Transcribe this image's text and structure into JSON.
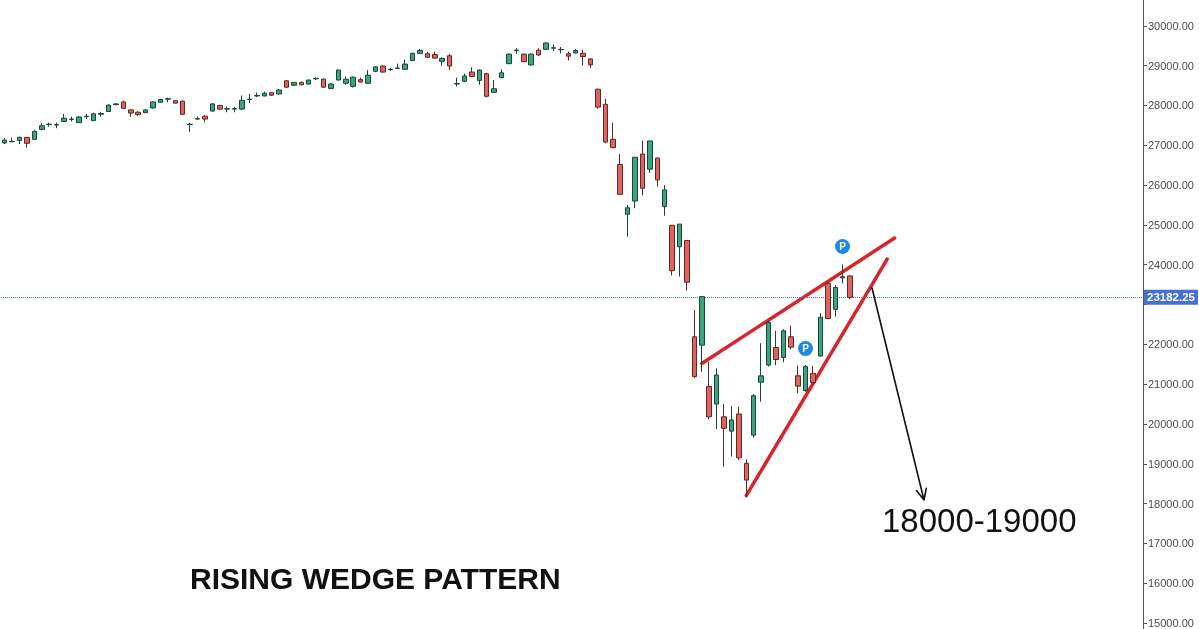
{
  "chart_data": {
    "type": "candlestick",
    "title": "RISING WEDGE PATTERN",
    "categories": [
      null,
      null,
      null,
      null,
      null,
      null,
      null,
      null,
      null,
      null,
      null,
      null,
      null,
      null,
      null,
      null,
      null,
      null,
      null,
      null,
      null,
      null,
      null,
      null,
      null,
      null,
      null,
      null,
      null,
      null,
      null,
      null,
      null,
      null,
      null,
      null,
      null,
      null,
      null,
      null,
      null,
      null,
      null,
      null,
      null,
      null,
      null,
      null,
      null,
      null,
      null,
      null,
      null,
      null,
      null,
      null,
      null,
      null,
      null,
      null,
      null,
      null,
      null,
      null,
      null,
      null,
      null,
      null,
      null,
      null,
      null,
      null,
      null,
      null,
      null,
      null,
      null,
      null,
      null,
      null,
      null,
      null,
      null,
      null,
      null,
      null,
      null,
      null,
      null,
      null,
      null,
      null,
      null,
      null,
      null,
      null,
      null,
      null,
      null,
      null,
      null,
      null,
      null,
      null,
      null,
      null,
      null,
      null,
      null,
      null,
      null,
      null,
      null,
      null,
      null,
      null,
      null,
      null,
      null,
      null,
      null,
      null,
      null,
      null,
      null,
      null,
      null,
      null,
      null,
      null,
      null,
      null,
      null,
      null,
      null,
      null,
      null,
      null,
      null,
      null,
      null,
      null,
      null,
      null,
      null,
      null,
      null,
      null,
      null,
      null,
      null,
      null,
      null,
      null
    ],
    "ohlc": [
      [
        27060,
        27180,
        27030,
        27130
      ],
      [
        27090,
        27190,
        27080,
        27100
      ],
      [
        27120,
        27220,
        27030,
        27200
      ],
      [
        27200,
        27210,
        26940,
        27050
      ],
      [
        27150,
        27390,
        27140,
        27350
      ],
      [
        27400,
        27560,
        27390,
        27490
      ],
      [
        27520,
        27570,
        27470,
        27530
      ],
      [
        27510,
        27570,
        27430,
        27520
      ],
      [
        27600,
        27790,
        27590,
        27680
      ],
      [
        27650,
        27720,
        27600,
        27660
      ],
      [
        27570,
        27740,
        27560,
        27710
      ],
      [
        27720,
        27790,
        27660,
        27730
      ],
      [
        27620,
        27820,
        27620,
        27790
      ],
      [
        27780,
        27840,
        27720,
        27800
      ],
      [
        27850,
        28030,
        27840,
        28010
      ],
      [
        28020,
        28060,
        28010,
        28040
      ],
      [
        28090,
        28120,
        27920,
        27930
      ],
      [
        27890,
        27910,
        27710,
        27810
      ],
      [
        27830,
        27860,
        27740,
        27770
      ],
      [
        27820,
        27910,
        27810,
        27890
      ],
      [
        27940,
        28100,
        27920,
        28090
      ],
      [
        28080,
        28170,
        28070,
        28150
      ],
      [
        28160,
        28200,
        28080,
        28170
      ],
      [
        28120,
        28140,
        28050,
        28060
      ],
      [
        28110,
        28120,
        27760,
        27780
      ],
      [
        27520,
        27570,
        27340,
        27530
      ],
      [
        27660,
        27720,
        27640,
        27670
      ],
      [
        27730,
        27760,
        27580,
        27660
      ],
      [
        27860,
        28060,
        27850,
        28040
      ],
      [
        28000,
        28020,
        27890,
        27910
      ],
      [
        27910,
        27970,
        27830,
        27920
      ],
      [
        27910,
        27960,
        27830,
        27920
      ],
      [
        27910,
        28250,
        27880,
        28130
      ],
      [
        28150,
        28290,
        28060,
        28160
      ],
      [
        28240,
        28330,
        28210,
        28250
      ],
      [
        28240,
        28350,
        28230,
        28310
      ],
      [
        28320,
        28340,
        28240,
        28260
      ],
      [
        28290,
        28410,
        28270,
        28390
      ],
      [
        28620,
        28640,
        28440,
        28460
      ],
      [
        28510,
        28590,
        28490,
        28580
      ],
      [
        28580,
        28600,
        28510,
        28520
      ],
      [
        28540,
        28650,
        28520,
        28640
      ],
      [
        28670,
        28710,
        28640,
        28680
      ],
      [
        28660,
        28680,
        28450,
        28460
      ],
      [
        28430,
        28560,
        28410,
        28540
      ],
      [
        28640,
        28900,
        28630,
        28890
      ],
      [
        28560,
        28730,
        28520,
        28660
      ],
      [
        28480,
        28730,
        28450,
        28710
      ],
      [
        28650,
        28700,
        28580,
        28590
      ],
      [
        28560,
        28890,
        28550,
        28760
      ],
      [
        28860,
        28990,
        28850,
        28970
      ],
      [
        28990,
        29020,
        28820,
        28840
      ],
      [
        28900,
        28940,
        28870,
        28910
      ],
      [
        28930,
        29050,
        28920,
        28940
      ],
      [
        28910,
        29150,
        28900,
        29040
      ],
      [
        29130,
        29330,
        29120,
        29310
      ],
      [
        29310,
        29420,
        29300,
        29380
      ],
      [
        29300,
        29350,
        29190,
        29210
      ],
      [
        29280,
        29350,
        29170,
        29190
      ],
      [
        29110,
        29210,
        29000,
        29180
      ],
      [
        29250,
        29290,
        28890,
        28990
      ],
      [
        28540,
        28700,
        28480,
        28550
      ],
      [
        28610,
        28800,
        28590,
        28740
      ],
      [
        28840,
        28960,
        28710,
        28730
      ],
      [
        28630,
        28900,
        28520,
        28890
      ],
      [
        28800,
        28820,
        28200,
        28230
      ],
      [
        28330,
        28640,
        28320,
        28420
      ],
      [
        28700,
        28910,
        28690,
        28820
      ],
      [
        29050,
        29310,
        29040,
        29290
      ],
      [
        29380,
        29440,
        29300,
        29390
      ],
      [
        29290,
        29310,
        29090,
        29100
      ],
      [
        29020,
        29310,
        29000,
        29290
      ],
      [
        29390,
        29440,
        29240,
        29270
      ],
      [
        29410,
        29580,
        29400,
        29570
      ],
      [
        29440,
        29530,
        29370,
        29450
      ],
      [
        29400,
        29470,
        29310,
        29410
      ],
      [
        29300,
        29350,
        29130,
        29240
      ],
      [
        29320,
        29420,
        29310,
        29380
      ],
      [
        29310,
        29400,
        29000,
        29230
      ],
      [
        29170,
        29190,
        28940,
        29020
      ],
      [
        28410,
        28420,
        27920,
        27960
      ],
      [
        28030,
        28170,
        27050,
        27080
      ],
      [
        27150,
        27570,
        26930,
        26940
      ],
      [
        26520,
        26780,
        25750,
        25770
      ],
      [
        25270,
        25500,
        24710,
        25430
      ],
      [
        25600,
        26700,
        25420,
        26700
      ],
      [
        26780,
        27120,
        25740,
        25920
      ],
      [
        26400,
        27110,
        26310,
        27110
      ],
      [
        26680,
        26690,
        25960,
        26130
      ],
      [
        25460,
        26000,
        25230,
        25880
      ],
      [
        24990,
        25000,
        23730,
        23850
      ],
      [
        24450,
        25020,
        23700,
        25020
      ],
      [
        24610,
        24620,
        23350,
        23560
      ],
      [
        22190,
        22860,
        21150,
        21190
      ],
      [
        21980,
        23200,
        21310,
        23200
      ],
      [
        20940,
        21560,
        20120,
        20180
      ],
      [
        20500,
        21400,
        19870,
        21230
      ],
      [
        20180,
        20500,
        18930,
        19890
      ],
      [
        19820,
        20450,
        19180,
        20100
      ],
      [
        20250,
        20430,
        19090,
        19150
      ],
      [
        19010,
        19110,
        18170,
        18590
      ],
      [
        19720,
        20750,
        19660,
        20710
      ],
      [
        21050,
        22030,
        20560,
        21210
      ],
      [
        21480,
        22590,
        21440,
        22550
      ],
      [
        21920,
        22340,
        21480,
        21620
      ],
      [
        21670,
        22380,
        21550,
        22340
      ],
      [
        22190,
        22470,
        21870,
        21930
      ],
      [
        21210,
        21470,
        20770,
        20950
      ],
      [
        20840,
        21480,
        20810,
        21440
      ],
      [
        21270,
        21460,
        21020,
        21040
      ],
      [
        21710,
        22780,
        21690,
        22680
      ],
      [
        23530,
        23580,
        22630,
        22650
      ],
      [
        22880,
        23490,
        22700,
        23430
      ],
      [
        23670,
        24010,
        23530,
        23700
      ],
      [
        23720,
        23730,
        23140,
        23180
      ],
      null,
      null,
      null,
      null,
      null,
      null,
      null,
      null,
      null,
      null,
      null,
      null,
      null,
      null,
      null,
      null,
      null,
      null,
      null,
      null,
      null,
      null,
      null,
      null,
      null,
      null,
      null,
      null,
      null,
      null,
      null,
      null,
      null,
      null,
      null,
      null,
      null,
      null,
      null
    ],
    "colors": [
      "#3ba57b",
      "#3ba57b",
      "#3ba57b",
      "#e2625f",
      "#3ba57b",
      "#3ba57b",
      "#3ba57b",
      "#3ba57b",
      "#3ba57b",
      "#3ba57b",
      "#3ba57b",
      "#3ba57b",
      "#3ba57b",
      "#3ba57b",
      "#3ba57b",
      "#3ba57b",
      "#e2625f",
      "#e2625f",
      "#e2625f",
      "#3ba57b",
      "#3ba57b",
      "#3ba57b",
      "#3ba57b",
      "#e2625f",
      "#e2625f",
      "#3ba57b",
      "#3ba57b",
      "#e2625f",
      "#3ba57b",
      "#e2625f",
      "#3ba57b",
      "#3ba57b",
      "#3ba57b",
      "#3ba57b",
      "#3ba57b",
      "#3ba57b",
      "#e2625f",
      "#3ba57b",
      "#e2625f",
      "#3ba57b",
      "#e2625f",
      "#3ba57b",
      "#3ba57b",
      "#e2625f",
      "#3ba57b",
      "#3ba57b",
      "#3ba57b",
      "#3ba57b",
      "#e2625f",
      "#3ba57b",
      "#3ba57b",
      "#e2625f",
      "#3ba57b",
      "#3ba57b",
      "#3ba57b",
      "#3ba57b",
      "#3ba57b",
      "#e2625f",
      "#e2625f",
      "#3ba57b",
      "#e2625f",
      "#3ba57b",
      "#3ba57b",
      "#e2625f",
      "#3ba57b",
      "#e2625f",
      "#3ba57b",
      "#3ba57b",
      "#3ba57b",
      "#3ba57b",
      "#e2625f",
      "#3ba57b",
      "#e2625f",
      "#3ba57b",
      "#3ba57b",
      "#3ba57b",
      "#e2625f",
      "#3ba57b",
      "#e2625f",
      "#e2625f",
      "#e2625f",
      "#e2625f",
      "#e2625f",
      "#e2625f",
      "#3ba57b",
      "#3ba57b",
      "#e2625f",
      "#3ba57b",
      "#e2625f",
      "#3ba57b",
      "#e2625f",
      "#3ba57b",
      "#e2625f",
      "#e2625f",
      "#3ba57b",
      "#e2625f",
      "#3ba57b",
      "#e2625f",
      "#3ba57b",
      "#e2625f",
      "#e2625f",
      "#3ba57b",
      "#3ba57b",
      "#3ba57b",
      "#e2625f",
      "#3ba57b",
      "#e2625f",
      "#e2625f",
      "#3ba57b",
      "#e2625f",
      "#3ba57b",
      "#e2625f",
      "#3ba57b",
      "#3ba57b",
      "#e2625f",
      null,
      null,
      null,
      null,
      null,
      null,
      null,
      null,
      null,
      null,
      null,
      null,
      null,
      null,
      null,
      null,
      null,
      null,
      null,
      null,
      null,
      null,
      null,
      null,
      null,
      null,
      null,
      null,
      null,
      null,
      null,
      null,
      null,
      null,
      null,
      null,
      null,
      null,
      null
    ],
    "series": [
      {
        "type": "line",
        "color": "#d7262b",
        "values": [
          null,
          null,
          null,
          null,
          null,
          null,
          null,
          null,
          null,
          null,
          null,
          null,
          null,
          null,
          null,
          null,
          null,
          null,
          null,
          null,
          null,
          null,
          null,
          null,
          null,
          null,
          null,
          null,
          null,
          null,
          null,
          null,
          null,
          null,
          null,
          null,
          null,
          null,
          null,
          null,
          null,
          null,
          null,
          null,
          null,
          null,
          null,
          null,
          null,
          null,
          null,
          null,
          null,
          null,
          null,
          null,
          null,
          null,
          null,
          null,
          null,
          null,
          null,
          null,
          null,
          null,
          null,
          null,
          null,
          null,
          null,
          null,
          null,
          null,
          null,
          null,
          null,
          null,
          null,
          null,
          null,
          null,
          null,
          null,
          null,
          null,
          null,
          null,
          null,
          null,
          null,
          null,
          null,
          null,
          21520,
          null,
          null,
          null,
          null,
          null,
          null,
          null,
          null,
          null,
          null,
          null,
          null,
          null,
          null,
          null,
          null,
          null,
          null,
          null,
          null,
          null,
          null,
          null,
          null,
          null,
          24670,
          null,
          null,
          null,
          null,
          null,
          null,
          null,
          null,
          null,
          null,
          null,
          null,
          null,
          null,
          null,
          null,
          null,
          null,
          null,
          null,
          null,
          null,
          null,
          null,
          null,
          null,
          null,
          null,
          null,
          null,
          null,
          null,
          null
        ]
      },
      {
        "type": "line",
        "color": "#d7262b",
        "values": [
          null,
          null,
          null,
          null,
          null,
          null,
          null,
          null,
          null,
          null,
          null,
          null,
          null,
          null,
          null,
          null,
          null,
          null,
          null,
          null,
          null,
          null,
          null,
          null,
          null,
          null,
          null,
          null,
          null,
          null,
          null,
          null,
          null,
          null,
          null,
          null,
          null,
          null,
          null,
          null,
          null,
          null,
          null,
          null,
          null,
          null,
          null,
          null,
          null,
          null,
          null,
          null,
          null,
          null,
          null,
          null,
          null,
          null,
          null,
          null,
          null,
          null,
          null,
          null,
          null,
          null,
          null,
          null,
          null,
          null,
          null,
          null,
          null,
          null,
          null,
          null,
          null,
          null,
          null,
          null,
          null,
          null,
          null,
          null,
          null,
          null,
          null,
          null,
          null,
          null,
          null,
          null,
          null,
          null,
          null,
          null,
          null,
          null,
          null,
          null,
          18200,
          null,
          null,
          null,
          null,
          null,
          null,
          null,
          null,
          null,
          null,
          null,
          null,
          null,
          null,
          null,
          null,
          null,
          null,
          24140,
          null,
          null,
          null,
          null,
          null,
          null,
          null,
          null,
          null,
          null,
          null,
          null,
          null,
          null,
          null,
          null,
          null,
          null,
          null,
          null,
          null,
          null,
          null,
          null,
          null,
          null,
          null,
          null,
          null,
          null,
          null,
          null,
          null,
          null
        ]
      }
    ],
    "ylim": [
      14850,
      30650
    ],
    "yticks": [
      {
        "value": 15000,
        "label": "15000.00"
      },
      {
        "value": 16000,
        "label": "16000.00"
      },
      {
        "value": 17000,
        "label": "17000.00"
      },
      {
        "value": 18000,
        "label": "18000.00"
      },
      {
        "value": 19000,
        "label": "19000.00"
      },
      {
        "value": 20000,
        "label": "20000.00"
      },
      {
        "value": 21000,
        "label": "21000.00"
      },
      {
        "value": 22000,
        "label": "22000.00"
      },
      {
        "value": 23000,
        "label": null
      },
      {
        "value": 24000,
        "label": "24000.00"
      },
      {
        "value": 25000,
        "label": "25000.00"
      },
      {
        "value": 26000,
        "label": "26000.00"
      },
      {
        "value": 27000,
        "label": "27000.00"
      },
      {
        "value": 28000,
        "label": "28000.00"
      },
      {
        "value": 29000,
        "label": "29000.00"
      },
      {
        "value": 30000,
        "label": "30000.00"
      }
    ],
    "tick_labels": "y",
    "ref_lines": [
      {
        "axis": "y",
        "value": 23182.25,
        "label": "23182.25",
        "color": "#4470d0",
        "line_style": "dotted"
      }
    ],
    "annotations": [
      {
        "text": "P",
        "y": 24450
      },
      {
        "text": "P",
        "y": 21900
      },
      "18000-19000"
    ]
  }
}
